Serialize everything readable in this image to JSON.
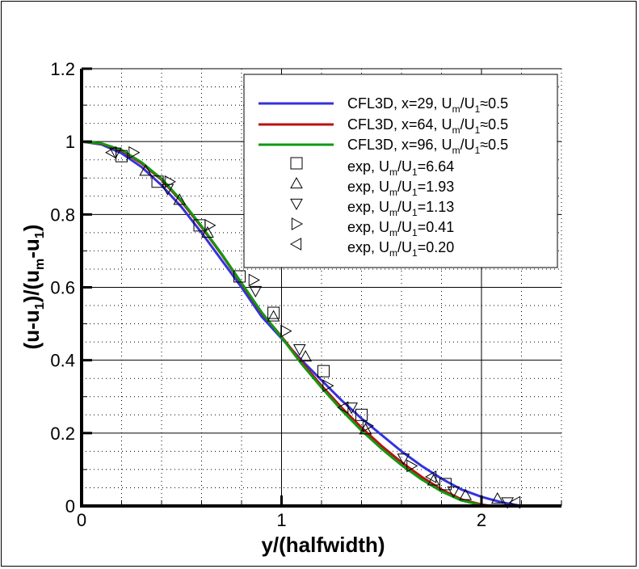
{
  "chart_data": {
    "type": "line",
    "title": "",
    "xlabel": "y/(halfwidth)",
    "ylabel": "(u-u1)/(um-u1)",
    "xlim": [
      0,
      2.4
    ],
    "ylim": [
      0,
      1.2
    ],
    "x_ticks": [
      "0",
      "1",
      "2"
    ],
    "y_ticks": [
      "0",
      "0.2",
      "0.4",
      "0.6",
      "0.8",
      "1",
      "1.2"
    ],
    "grid": {
      "major": "solid",
      "minor": "dotted",
      "x_minor_step": 0.2,
      "y_minor_step": 0.05
    },
    "legend_position": "upper right",
    "series": [
      {
        "name": "CFL3D, x=29, Um/U1≈0.5",
        "kind": "line",
        "color": "#3333dd",
        "x": [
          0,
          0.1,
          0.2,
          0.3,
          0.4,
          0.5,
          0.6,
          0.7,
          0.8,
          0.9,
          1.0,
          1.1,
          1.2,
          1.3,
          1.4,
          1.5,
          1.6,
          1.7,
          1.8,
          1.9,
          2.0,
          2.1,
          2.2
        ],
        "y": [
          1.0,
          0.992,
          0.968,
          0.93,
          0.88,
          0.82,
          0.75,
          0.675,
          0.6,
          0.52,
          0.46,
          0.4,
          0.345,
          0.29,
          0.24,
          0.195,
          0.15,
          0.11,
          0.075,
          0.045,
          0.025,
          0.01,
          0.0
        ]
      },
      {
        "name": "CFL3D, x=64, Um/U1≈0.5",
        "kind": "line",
        "color": "#bb1111",
        "x": [
          0,
          0.1,
          0.2,
          0.3,
          0.4,
          0.5,
          0.6,
          0.7,
          0.8,
          0.9,
          1.0,
          1.1,
          1.2,
          1.3,
          1.4,
          1.5,
          1.6,
          1.7,
          1.8,
          1.9,
          2.0,
          2.05
        ],
        "y": [
          1.0,
          0.994,
          0.975,
          0.94,
          0.895,
          0.835,
          0.765,
          0.69,
          0.61,
          0.53,
          0.465,
          0.395,
          0.33,
          0.27,
          0.215,
          0.165,
          0.12,
          0.08,
          0.045,
          0.018,
          0.004,
          0.0
        ]
      },
      {
        "name": "CFL3D, x=96, Um/U1≈0.5",
        "kind": "line",
        "color": "#119911",
        "x": [
          0,
          0.1,
          0.2,
          0.3,
          0.4,
          0.5,
          0.6,
          0.7,
          0.8,
          0.9,
          1.0,
          1.1,
          1.2,
          1.3,
          1.4,
          1.5,
          1.6,
          1.7,
          1.8,
          1.9,
          2.0,
          2.05
        ],
        "y": [
          1.0,
          0.995,
          0.977,
          0.943,
          0.898,
          0.838,
          0.768,
          0.692,
          0.612,
          0.532,
          0.463,
          0.39,
          0.325,
          0.263,
          0.207,
          0.157,
          0.112,
          0.073,
          0.04,
          0.015,
          0.002,
          0.0
        ]
      },
      {
        "name": "exp, Um/U1=6.64",
        "kind": "marker",
        "marker": "square",
        "x": [
          0.2,
          0.38,
          0.59,
          0.79,
          0.96,
          1.21,
          1.4,
          1.82
        ],
        "y": [
          0.96,
          0.89,
          0.77,
          0.63,
          0.53,
          0.37,
          0.25,
          0.06
        ]
      },
      {
        "name": "exp, Um/U1=1.93",
        "kind": "marker",
        "marker": "triangle-up",
        "x": [
          0.32,
          0.49,
          0.63,
          0.96,
          1.12,
          1.42,
          1.76,
          1.92,
          2.08
        ],
        "y": [
          0.92,
          0.84,
          0.75,
          0.52,
          0.41,
          0.21,
          0.07,
          0.03,
          0.02
        ]
      },
      {
        "name": "exp, Um/U1=1.13",
        "kind": "marker",
        "marker": "triangle-down",
        "x": [
          0.17,
          0.43,
          0.87,
          1.09,
          1.35,
          1.61,
          1.86,
          2.13
        ],
        "y": [
          0.97,
          0.87,
          0.59,
          0.43,
          0.27,
          0.13,
          0.04,
          0.01
        ]
      },
      {
        "name": "exp, Um/U1=0.41",
        "kind": "marker",
        "marker": "triangle-right",
        "x": [
          0.26,
          0.44,
          0.64,
          0.86,
          1.02,
          1.23,
          1.43,
          1.65
        ],
        "y": [
          0.97,
          0.89,
          0.77,
          0.62,
          0.48,
          0.33,
          0.22,
          0.11
        ]
      },
      {
        "name": "exp, Um/U1=0.20",
        "kind": "marker",
        "marker": "triangle-left",
        "x": [
          0.15,
          1.31,
          1.75,
          2.17
        ],
        "y": [
          0.97,
          0.27,
          0.08,
          0.01
        ]
      }
    ]
  },
  "axes": {
    "xlabel": "y/(halfwidth)",
    "ylabel_parts": {
      "p1": "(u-u",
      "s1": "1",
      "p2": ")/(u",
      "s2": "m",
      "p3": "-u",
      "s3": "1",
      "p4": ")"
    }
  },
  "legend": {
    "entries": [
      {
        "prefix": "CFL3D, x=29, U",
        "sub1": "m",
        "mid": "/U",
        "sub2": "1",
        "suffix": "≈0.5"
      },
      {
        "prefix": "CFL3D, x=64, U",
        "sub1": "m",
        "mid": "/U",
        "sub2": "1",
        "suffix": "≈0.5"
      },
      {
        "prefix": "CFL3D, x=96, U",
        "sub1": "m",
        "mid": "/U",
        "sub2": "1",
        "suffix": "≈0.5"
      },
      {
        "prefix": "exp, U",
        "sub1": "m",
        "mid": "/U",
        "sub2": "1",
        "suffix": "=6.64"
      },
      {
        "prefix": "exp, U",
        "sub1": "m",
        "mid": "/U",
        "sub2": "1",
        "suffix": "=1.93"
      },
      {
        "prefix": "exp, U",
        "sub1": "m",
        "mid": "/U",
        "sub2": "1",
        "suffix": "=1.13"
      },
      {
        "prefix": "exp, U",
        "sub1": "m",
        "mid": "/U",
        "sub2": "1",
        "suffix": "=0.41"
      },
      {
        "prefix": "exp, U",
        "sub1": "m",
        "mid": "/U",
        "sub2": "1",
        "suffix": "=0.20"
      }
    ]
  }
}
